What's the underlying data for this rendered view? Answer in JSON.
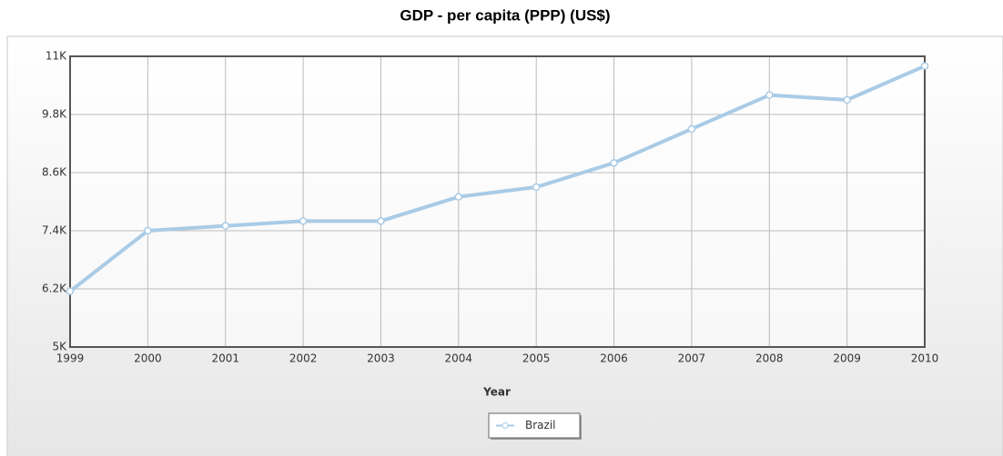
{
  "chart_data": {
    "type": "line",
    "title": "GDP - per capita (PPP) (US$)",
    "xlabel": "Year",
    "categories": [
      "1999",
      "2000",
      "2001",
      "2002",
      "2003",
      "2004",
      "2005",
      "2006",
      "2007",
      "2008",
      "2009",
      "2010"
    ],
    "series": [
      {
        "name": "Brazil",
        "color": "#a9cbe6",
        "values": [
          6150,
          7400,
          7500,
          7600,
          7600,
          8100,
          8300,
          8800,
          9500,
          10200,
          10100,
          10800
        ]
      }
    ],
    "ylim": [
      5000,
      11000
    ],
    "yticks": [
      {
        "value": 5000,
        "label": "5K"
      },
      {
        "value": 6200,
        "label": "6.2K"
      },
      {
        "value": 7400,
        "label": "7.4K"
      },
      {
        "value": 8600,
        "label": "8.6K"
      },
      {
        "value": 9800,
        "label": "9.8K"
      },
      {
        "value": 11000,
        "label": "11K"
      }
    ],
    "grid": true,
    "legend": "bottom"
  }
}
